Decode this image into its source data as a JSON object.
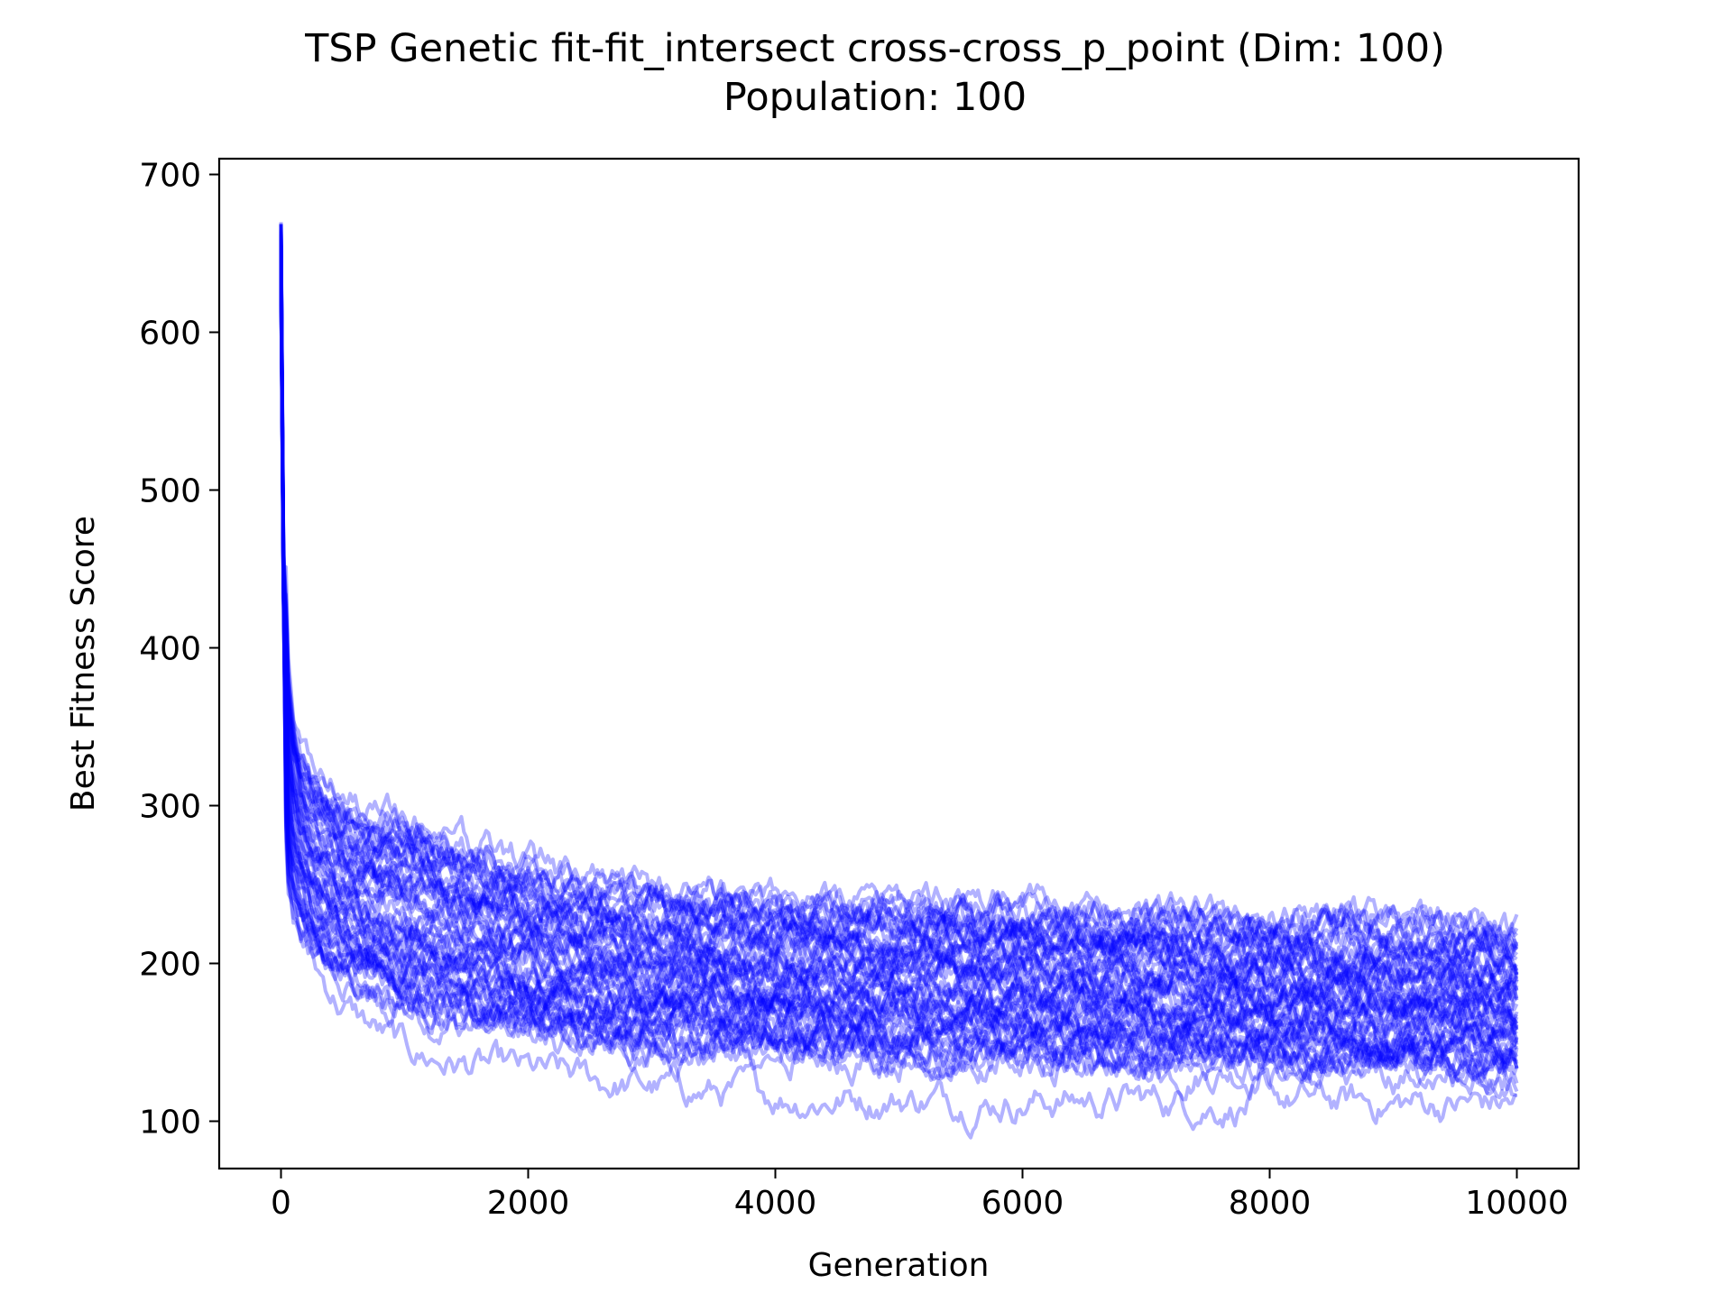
{
  "chart_data": {
    "type": "line",
    "title": "TSP Genetic fit-fit_intersect cross-cross_p_point (Dim: 100)",
    "subtitle": "Population: 100",
    "xlabel": "Generation",
    "ylabel": "Best Fitness Score",
    "xlim": [
      -500,
      10500
    ],
    "ylim": [
      70,
      710
    ],
    "xticks": [
      0,
      2000,
      4000,
      6000,
      8000,
      10000
    ],
    "yticks": [
      100,
      200,
      300,
      400,
      500,
      600,
      700
    ],
    "grid": false,
    "series_color": "#0000ff",
    "series_opacity": 0.3,
    "envelope": {
      "x": [
        0,
        10,
        30,
        60,
        100,
        150,
        200,
        300,
        500,
        750,
        1000,
        1500,
        2000,
        2500,
        3000,
        3500,
        4000,
        5000,
        6000,
        7000,
        8000,
        9000,
        10000
      ],
      "upper": [
        680,
        600,
        470,
        390,
        360,
        340,
        330,
        320,
        305,
        295,
        290,
        275,
        262,
        252,
        245,
        242,
        240,
        238,
        236,
        232,
        230,
        226,
        222
      ],
      "center": [
        650,
        520,
        380,
        310,
        285,
        270,
        260,
        245,
        232,
        222,
        215,
        207,
        200,
        195,
        190,
        187,
        184,
        180,
        176,
        172,
        170,
        167,
        165
      ],
      "lower": [
        620,
        440,
        300,
        250,
        232,
        222,
        215,
        200,
        188,
        178,
        170,
        160,
        152,
        148,
        145,
        143,
        141,
        139,
        137,
        134,
        132,
        130,
        128
      ],
      "min": [
        610,
        420,
        280,
        235,
        220,
        212,
        205,
        190,
        170,
        155,
        140,
        132,
        125,
        122,
        118,
        115,
        113,
        112,
        111,
        110,
        109,
        108,
        108
      ]
    }
  }
}
